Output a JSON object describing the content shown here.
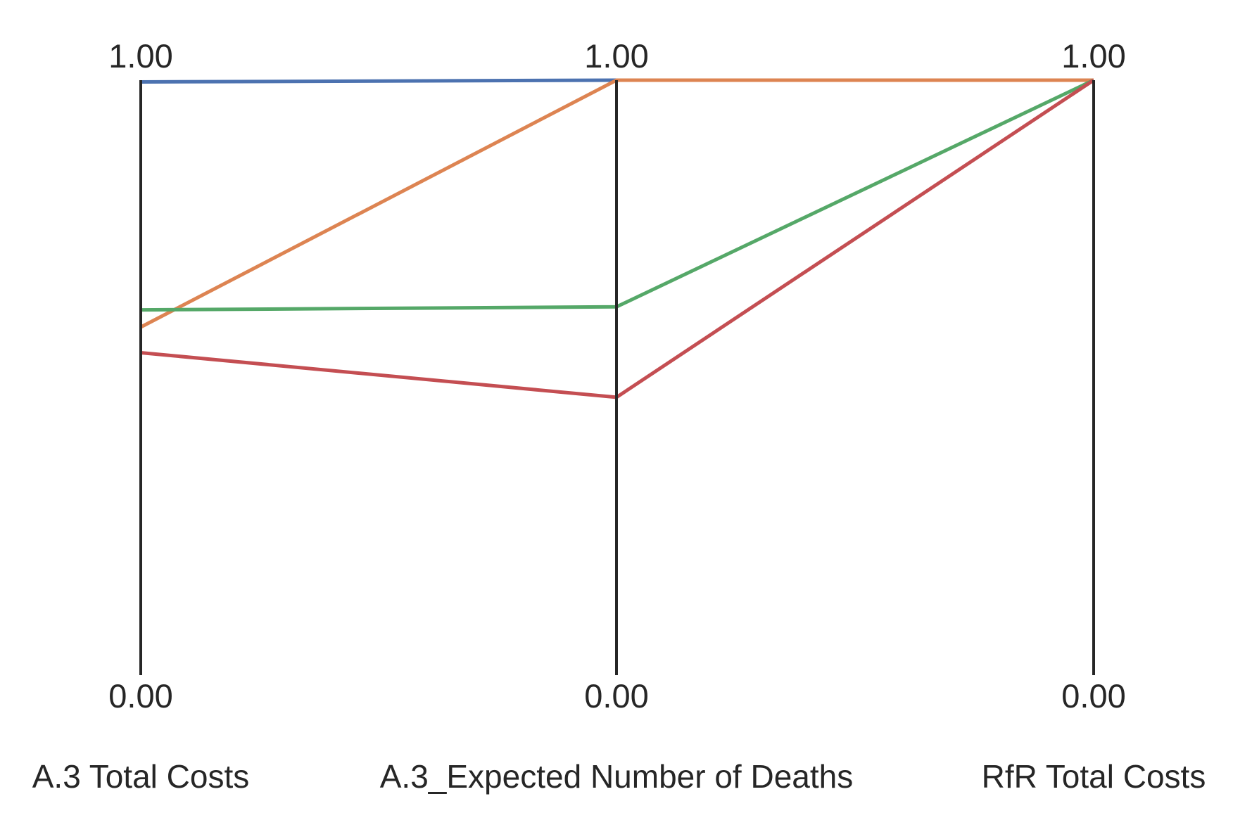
{
  "chart_data": {
    "type": "parallel-coordinates",
    "axes": [
      {
        "label": "A.3 Total Costs",
        "min_label": "0.00",
        "max_label": "1.00",
        "range": [
          0,
          1
        ]
      },
      {
        "label": "A.3_Expected Number of Deaths",
        "min_label": "0.00",
        "max_label": "1.00",
        "range": [
          0,
          1
        ]
      },
      {
        "label": "RfR Total Costs",
        "min_label": "0.00",
        "max_label": "1.00",
        "range": [
          0,
          1
        ]
      }
    ],
    "series": [
      {
        "color": "#4c72b0",
        "values": [
          0.997,
          1.0,
          1.0
        ]
      },
      {
        "color": "#dd8452",
        "values": [
          0.585,
          1.0,
          1.0
        ]
      },
      {
        "color": "#55a868",
        "values": [
          0.614,
          0.619,
          1.0
        ]
      },
      {
        "color": "#c44e52",
        "values": [
          0.542,
          0.467,
          1.0
        ]
      }
    ],
    "grid": false,
    "legend": "none"
  }
}
